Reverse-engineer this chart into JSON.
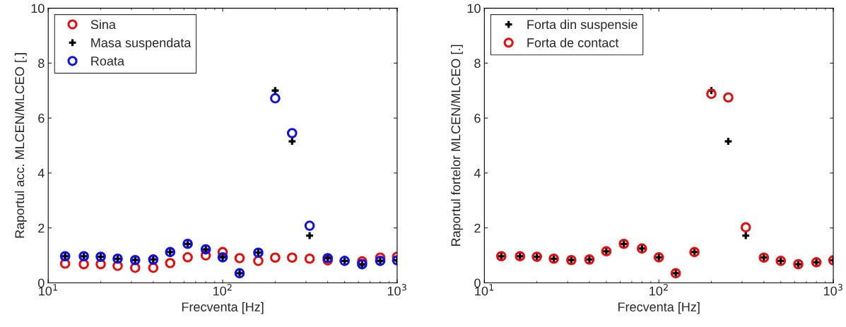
{
  "chart_data": [
    {
      "type": "scatter",
      "xlabel": "Frecventa [Hz]",
      "ylabel": "Raportul acc. MLCEN/MLCEO [.]",
      "x": [
        12.5,
        16,
        20,
        25,
        31.5,
        40,
        50,
        63,
        80,
        100,
        125,
        160,
        200,
        250,
        315,
        400,
        500,
        630,
        800,
        1000
      ],
      "series": [
        {
          "name": "Sina",
          "color": "#e01010",
          "marker": "circle",
          "values": [
            0.7,
            0.68,
            0.68,
            0.62,
            0.55,
            0.55,
            0.72,
            0.93,
            1.0,
            1.12,
            0.9,
            0.8,
            0.92,
            0.92,
            0.88,
            0.82,
            null,
            0.78,
            0.92,
            0.95
          ]
        },
        {
          "name": "Masa suspendata",
          "color": "#000000",
          "marker": "cross",
          "values": [
            0.97,
            0.97,
            0.95,
            0.88,
            0.83,
            0.85,
            1.12,
            1.42,
            1.22,
            0.93,
            0.35,
            1.1,
            7.0,
            5.15,
            1.72,
            0.9,
            0.8,
            0.68,
            0.8,
            0.82
          ]
        },
        {
          "name": "Roata",
          "color": "#1010e0",
          "marker": "circle",
          "values": [
            0.97,
            0.97,
            0.95,
            0.88,
            0.83,
            0.85,
            1.12,
            1.42,
            1.22,
            0.93,
            0.35,
            1.1,
            6.72,
            5.45,
            2.08,
            0.9,
            0.8,
            0.68,
            0.8,
            0.82
          ]
        }
      ],
      "xlim": [
        10,
        1000
      ],
      "xticks": [
        {
          "value": 10,
          "label": "10$^{1}$"
        },
        {
          "value": 100,
          "label": "10$^{2}$"
        },
        {
          "value": 1000,
          "label": "10$^{3}$"
        }
      ],
      "ylim": [
        0,
        10
      ],
      "yticks": [
        0,
        2,
        4,
        6,
        8,
        10
      ],
      "log": "x",
      "legend": "top left",
      "grid": false
    },
    {
      "type": "scatter",
      "xlabel": "Frecventa [Hz]",
      "ylabel": "Raportul fortelor MLCEN/MLCEO [.]",
      "x": [
        12.5,
        16,
        20,
        25,
        31.5,
        40,
        50,
        63,
        80,
        100,
        125,
        160,
        200,
        250,
        315,
        400,
        500,
        630,
        800,
        1000
      ],
      "series": [
        {
          "name": "Forta din suspensie",
          "color": "#000000",
          "marker": "cross",
          "values": [
            0.97,
            0.97,
            0.95,
            0.88,
            0.83,
            0.85,
            1.15,
            1.42,
            1.25,
            0.93,
            0.35,
            1.12,
            7.0,
            5.15,
            1.72,
            0.92,
            0.8,
            0.68,
            0.75,
            0.82
          ]
        },
        {
          "name": "Forta de contact",
          "color": "#e01010",
          "marker": "circle",
          "values": [
            0.97,
            0.97,
            0.95,
            0.88,
            0.83,
            0.85,
            1.15,
            1.42,
            1.25,
            0.93,
            0.35,
            1.12,
            6.88,
            6.75,
            2.02,
            0.92,
            0.8,
            0.68,
            0.75,
            0.82
          ]
        }
      ],
      "xlim": [
        10,
        1000
      ],
      "xticks": [
        {
          "value": 10,
          "label": "10$^{1}$"
        },
        {
          "value": 100,
          "label": "10$^{2}$"
        },
        {
          "value": 1000,
          "label": "10$^{3}$"
        }
      ],
      "ylim": [
        0,
        10
      ],
      "yticks": [
        0,
        2,
        4,
        6,
        8,
        10
      ],
      "log": "x",
      "legend": "top left",
      "grid": false
    }
  ]
}
